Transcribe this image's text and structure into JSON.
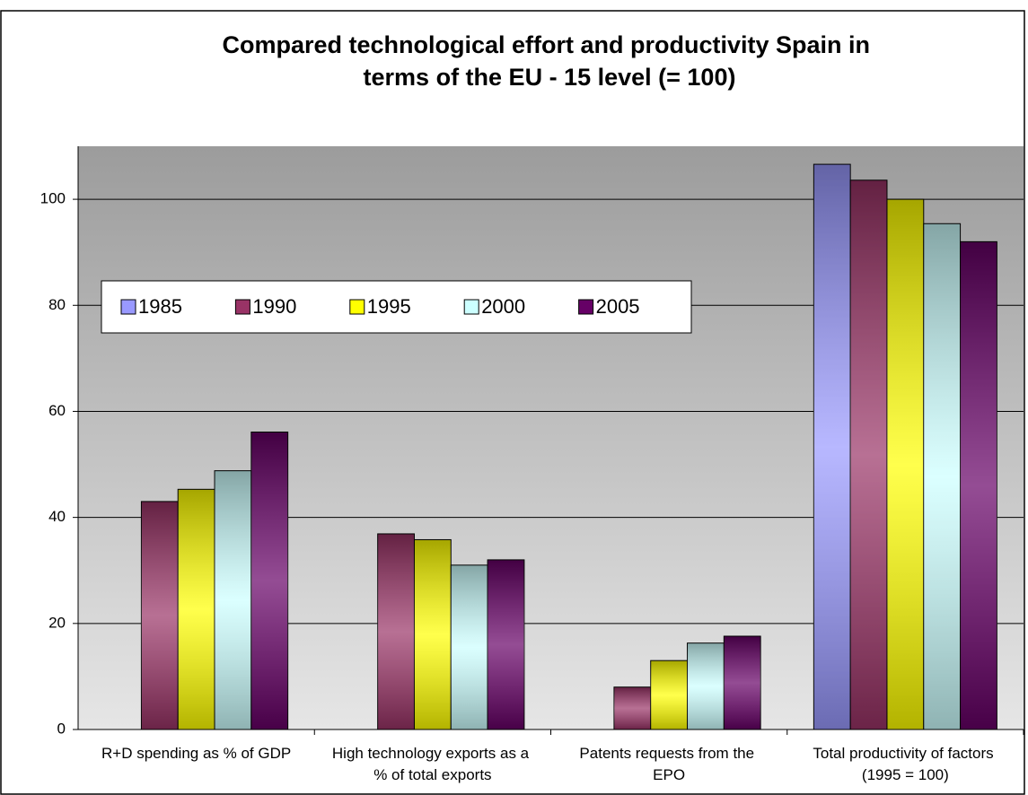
{
  "chart_data": {
    "type": "bar",
    "title": "Compared technological effort and productivity Spain in terms of the EU - 15 level (= 100)",
    "categories": [
      "R+D spending as % of GDP",
      "High technology exports as a % of total exports",
      "Patents requests from the EPO",
      "Total productivity of factors (1995 = 100)"
    ],
    "series": [
      {
        "name": "1985",
        "color": "#9999ff",
        "values": [
          null,
          null,
          null,
          106.6
        ]
      },
      {
        "name": "1990",
        "color": "#993366",
        "values": [
          43,
          36.9,
          8,
          103.6
        ]
      },
      {
        "name": "1995",
        "color": "#ffff00",
        "values": [
          45.3,
          35.8,
          13,
          100
        ]
      },
      {
        "name": "2000",
        "color": "#ccffff",
        "values": [
          48.8,
          31,
          16.3,
          95.4
        ]
      },
      {
        "name": "2005",
        "color": "#660066",
        "values": [
          56.1,
          32,
          17.6,
          92
        ]
      }
    ],
    "ylim": [
      0,
      110
    ],
    "yticks": [
      0,
      20,
      40,
      60,
      80,
      100
    ],
    "grid": true,
    "legend": "left"
  }
}
